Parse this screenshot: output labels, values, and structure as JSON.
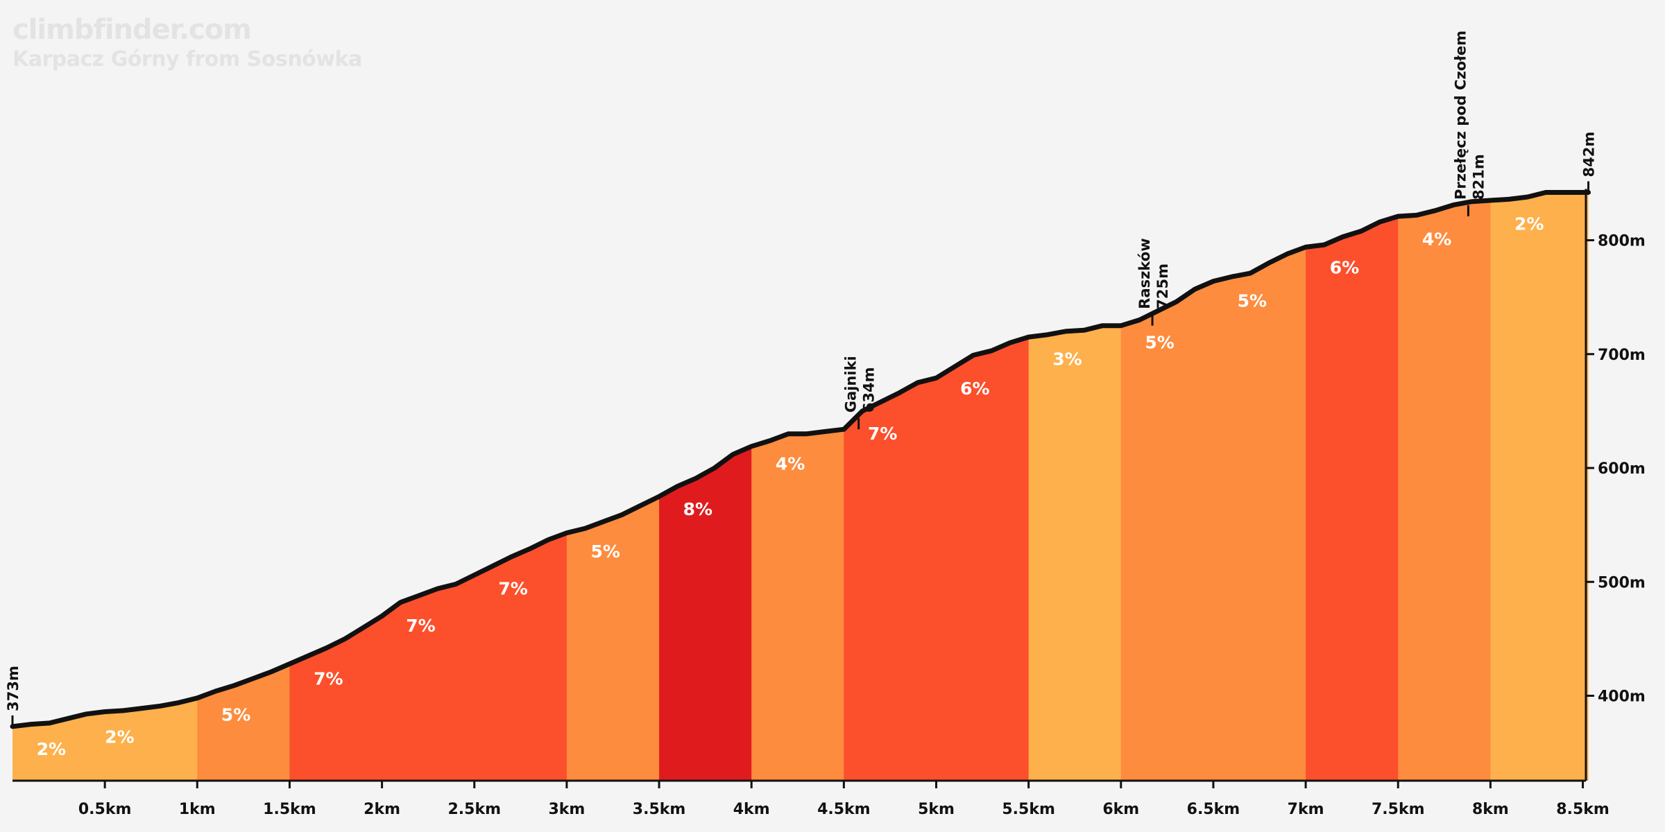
{
  "brand": "climbfinder.com",
  "subtitle": "Karpacz Górny from Sosnówka",
  "chart_data": {
    "type": "area",
    "xlabel": "",
    "ylabel": "",
    "xlim": [
      0,
      8.55
    ],
    "ylim": [
      324,
      900
    ],
    "x_ticks": [
      {
        "value": 0.5,
        "label": "0.5km"
      },
      {
        "value": 1,
        "label": "1km"
      },
      {
        "value": 1.5,
        "label": "1.5km"
      },
      {
        "value": 2,
        "label": "2km"
      },
      {
        "value": 2.5,
        "label": "2.5km"
      },
      {
        "value": 3,
        "label": "3km"
      },
      {
        "value": 3.5,
        "label": "3.5km"
      },
      {
        "value": 4,
        "label": "4km"
      },
      {
        "value": 4.5,
        "label": "4.5km"
      },
      {
        "value": 5,
        "label": "5km"
      },
      {
        "value": 5.5,
        "label": "5.5km"
      },
      {
        "value": 6,
        "label": "6km"
      },
      {
        "value": 6.5,
        "label": "6.5km"
      },
      {
        "value": 7,
        "label": "7km"
      },
      {
        "value": 7.5,
        "label": "7.5km"
      },
      {
        "value": 8,
        "label": "8km"
      },
      {
        "value": 8.5,
        "label": "8.5km"
      }
    ],
    "y_ticks": [
      {
        "value": 400,
        "label": "400m"
      },
      {
        "value": 500,
        "label": "500m"
      },
      {
        "value": 600,
        "label": "600m"
      },
      {
        "value": 700,
        "label": "700m"
      },
      {
        "value": 800,
        "label": "800m"
      }
    ],
    "elevation": {
      "x": [
        0,
        0.1,
        0.2,
        0.3,
        0.4,
        0.5,
        0.6,
        0.7,
        0.8,
        0.9,
        1.0,
        1.1,
        1.2,
        1.3,
        1.4,
        1.5,
        1.6,
        1.7,
        1.8,
        1.9,
        2.0,
        2.1,
        2.2,
        2.3,
        2.4,
        2.5,
        2.6,
        2.7,
        2.8,
        2.9,
        3.0,
        3.1,
        3.2,
        3.3,
        3.4,
        3.5,
        3.6,
        3.7,
        3.8,
        3.9,
        4.0,
        4.1,
        4.2,
        4.3,
        4.4,
        4.5,
        4.6,
        4.7,
        4.8,
        4.9,
        5.0,
        5.1,
        5.2,
        5.3,
        5.4,
        5.5,
        5.6,
        5.7,
        5.8,
        5.9,
        6.0,
        6.1,
        6.2,
        6.3,
        6.4,
        6.5,
        6.6,
        6.7,
        6.8,
        6.9,
        7.0,
        7.1,
        7.2,
        7.3,
        7.4,
        7.5,
        7.6,
        7.7,
        7.8,
        7.9,
        8.0,
        8.1,
        8.2,
        8.3,
        8.4,
        8.5,
        8.53
      ],
      "y": [
        373,
        375,
        376,
        380,
        384,
        386,
        387,
        389,
        391,
        394,
        398,
        404,
        409,
        415,
        421,
        428,
        435,
        442,
        450,
        460,
        470,
        482,
        488,
        494,
        498,
        506,
        514,
        522,
        529,
        537,
        543,
        547,
        553,
        559,
        567,
        575,
        584,
        591,
        600,
        612,
        619,
        624,
        630,
        630,
        632,
        634,
        650,
        658,
        666,
        675,
        679,
        689,
        699,
        703,
        710,
        715,
        717,
        720,
        721,
        725,
        725,
        730,
        738,
        746,
        757,
        764,
        768,
        771,
        780,
        788,
        794,
        796,
        803,
        808,
        816,
        821,
        822,
        826,
        831,
        834,
        835,
        836,
        838,
        842,
        842,
        842,
        842
      ]
    },
    "segments": [
      {
        "from": 0,
        "to": 1,
        "grade": "2%",
        "label_x": 0.5,
        "color": "#fdb04b"
      },
      {
        "from": 0,
        "to": 0.5,
        "grade": "2%",
        "label_x": 0.13,
        "color": "#fdb04b"
      },
      {
        "from": 1,
        "to": 1.5,
        "grade": "5%",
        "label_x": 1.13,
        "color": "#fd8c3e"
      },
      {
        "from": 1.5,
        "to": 2,
        "grade": "7%",
        "label_x": 1.63,
        "color": "#fc4f2c"
      },
      {
        "from": 2,
        "to": 2.5,
        "grade": "7%",
        "label_x": 2.13,
        "color": "#fc4f2c"
      },
      {
        "from": 2.5,
        "to": 3,
        "grade": "7%",
        "label_x": 2.63,
        "color": "#fc4f2c"
      },
      {
        "from": 3,
        "to": 3.5,
        "grade": "5%",
        "label_x": 3.13,
        "color": "#fd8c3e"
      },
      {
        "from": 3.5,
        "to": 4,
        "grade": "8%",
        "label_x": 3.63,
        "color": "#e01b1e"
      },
      {
        "from": 4,
        "to": 4.5,
        "grade": "4%",
        "label_x": 4.13,
        "color": "#fd8c3e"
      },
      {
        "from": 4.5,
        "to": 5,
        "grade": "7%",
        "label_x": 4.63,
        "color": "#fc4f2c"
      },
      {
        "from": 5,
        "to": 5.5,
        "grade": "6%",
        "label_x": 5.13,
        "color": "#fc4f2c"
      },
      {
        "from": 5.5,
        "to": 6,
        "grade": "3%",
        "label_x": 5.63,
        "color": "#fdb04b"
      },
      {
        "from": 6,
        "to": 6.5,
        "grade": "5%",
        "label_x": 6.13,
        "color": "#fd8c3e"
      },
      {
        "from": 6.5,
        "to": 7,
        "grade": "5%",
        "label_x": 6.63,
        "color": "#fd8c3e"
      },
      {
        "from": 7,
        "to": 7.5,
        "grade": "6%",
        "label_x": 7.13,
        "color": "#fc4f2c"
      },
      {
        "from": 7.5,
        "to": 8,
        "grade": "4%",
        "label_x": 7.63,
        "color": "#fd8c3e"
      },
      {
        "from": 8,
        "to": 8.53,
        "grade": "2%",
        "label_x": 8.13,
        "color": "#fdb04b"
      }
    ],
    "waypoints": [
      {
        "name": "",
        "elevation_label": "373m",
        "x": 0,
        "y": 373
      },
      {
        "name": "Gajniki",
        "elevation_label": "634m",
        "x": 4.58,
        "y": 634
      },
      {
        "name": "Raszków",
        "elevation_label": "725m",
        "x": 6.17,
        "y": 725
      },
      {
        "name": "Przełęcz pod Czołem",
        "elevation_label": "821m",
        "x": 7.88,
        "y": 821
      },
      {
        "name": "",
        "elevation_label": "842m",
        "x": 8.53,
        "y": 842
      }
    ]
  }
}
